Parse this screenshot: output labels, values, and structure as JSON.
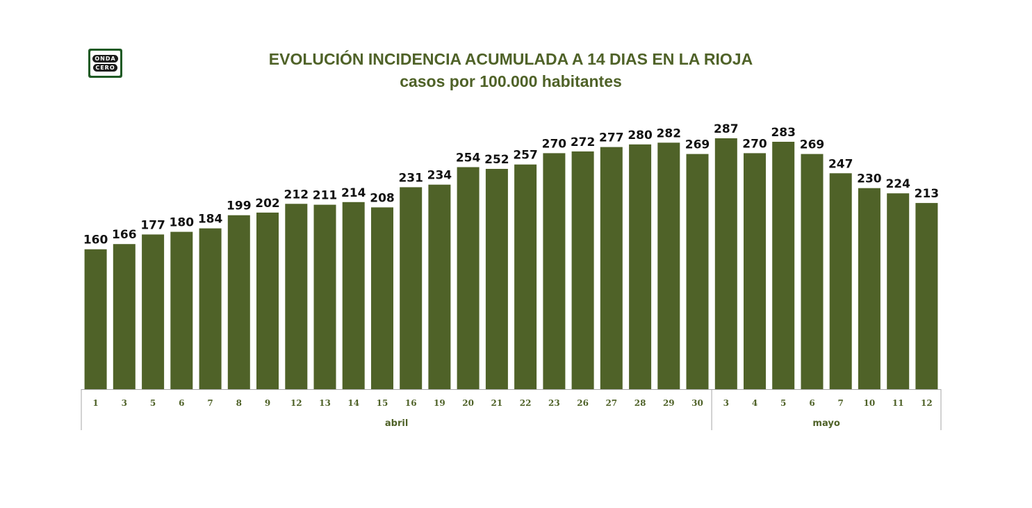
{
  "logo": {
    "word1": "ONDA",
    "word2": "CERO"
  },
  "chart_data": {
    "type": "bar",
    "title": "EVOLUCIÓN INCIDENCIA ACUMULADA A 14 DIAS EN LA RIOJA",
    "subtitle": "casos por 100.000 habitantes",
    "categories": [
      "1",
      "3",
      "5",
      "6",
      "7",
      "8",
      "9",
      "12",
      "13",
      "14",
      "15",
      "16",
      "19",
      "20",
      "21",
      "22",
      "23",
      "26",
      "27",
      "28",
      "29",
      "30",
      "3",
      "4",
      "5",
      "6",
      "7",
      "10",
      "11",
      "12"
    ],
    "values": [
      160,
      166,
      177,
      180,
      184,
      199,
      202,
      212,
      211,
      214,
      208,
      231,
      234,
      254,
      252,
      257,
      270,
      272,
      277,
      280,
      282,
      269,
      287,
      270,
      283,
      269,
      247,
      230,
      224,
      213
    ],
    "groups": [
      {
        "label": "abril",
        "count": 22
      },
      {
        "label": "mayo",
        "count": 8
      }
    ],
    "ylim": [
      0,
      300
    ],
    "grid": false,
    "legend": "none",
    "bar_color": "#4f6228"
  }
}
